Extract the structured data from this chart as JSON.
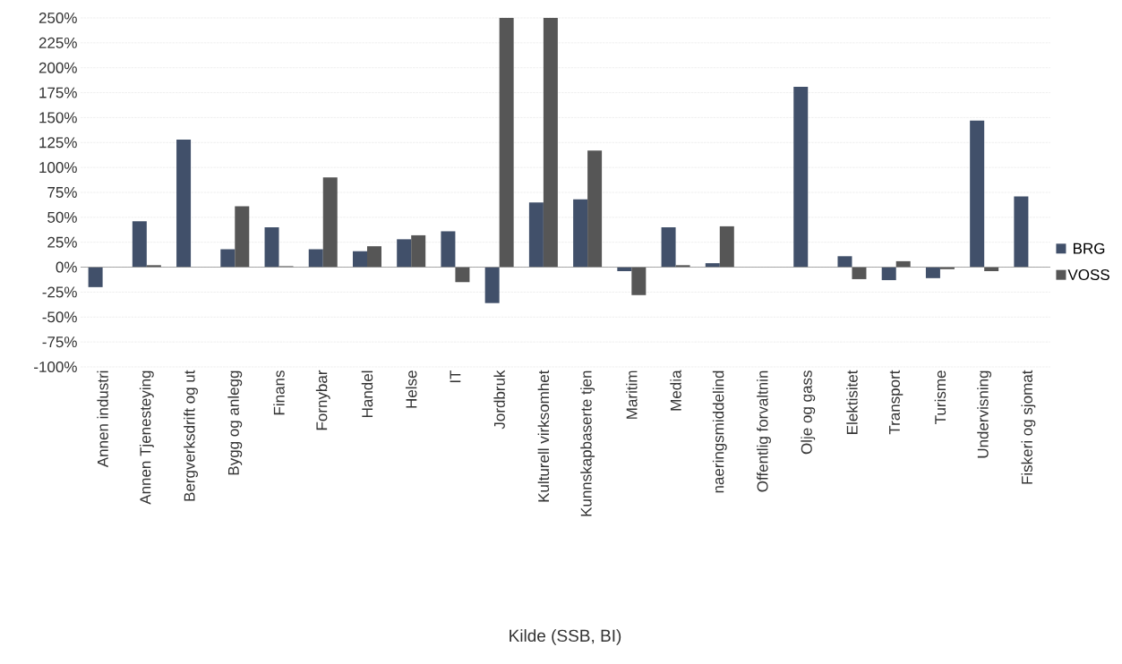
{
  "chart_data": {
    "type": "bar",
    "annotations": [
      "Kilde (SSB, BI)"
    ],
    "categories": [
      "Annen industri",
      "Annen Tjenesteying",
      "Bergverksdrift og ut",
      "Bygg og anlegg",
      "Finans",
      "Fornybar",
      "Handel",
      "Helse",
      "IT",
      "Jordbruk",
      "Kulturell virksomhet",
      "Kunnskapbaserte tjen",
      "Maritim",
      "Media",
      "naeringsmiddelind",
      "Offentlig forvaltnin",
      "Olje og gass",
      "Elektisitet",
      "Transport",
      "Turisme",
      "Undervisning",
      "Fiskeri og sjomat"
    ],
    "series": [
      {
        "name": "BRG",
        "color": "#41506a",
        "values": [
          -20,
          46,
          128,
          18,
          40,
          18,
          16,
          28,
          36,
          -36,
          65,
          68,
          -4,
          40,
          4,
          null,
          181,
          11,
          -13,
          -11,
          147,
          71
        ]
      },
      {
        "name": "VOSS",
        "color": "#565656",
        "values": [
          null,
          2,
          null,
          61,
          1,
          90,
          21,
          32,
          -15,
          250,
          250,
          117,
          -28,
          2,
          41,
          null,
          null,
          -12,
          6,
          -2,
          -4,
          null
        ]
      }
    ],
    "ylim": [
      -100,
      250
    ],
    "yticks": [
      {
        "value": -100,
        "label": "-100%"
      },
      {
        "value": -75,
        "label": "-75%"
      },
      {
        "value": -50,
        "label": "-50%"
      },
      {
        "value": -25,
        "label": "-25%"
      },
      {
        "value": 0,
        "label": "0%"
      },
      {
        "value": 25,
        "label": "25%"
      },
      {
        "value": 50,
        "label": "50%"
      },
      {
        "value": 75,
        "label": "75%"
      },
      {
        "value": 100,
        "label": "100%"
      },
      {
        "value": 125,
        "label": "125%"
      },
      {
        "value": 150,
        "label": "150%"
      },
      {
        "value": 175,
        "label": "175%"
      },
      {
        "value": 200,
        "label": "200%"
      },
      {
        "value": 225,
        "label": "225%"
      },
      {
        "value": 250,
        "label": "250%"
      }
    ],
    "grid": "y",
    "legend": "right"
  }
}
